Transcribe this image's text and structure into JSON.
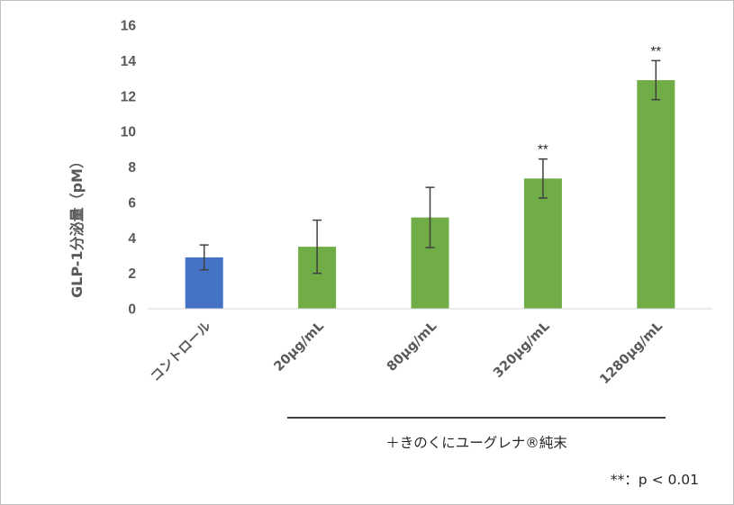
{
  "chart_data": {
    "type": "bar",
    "ylabel": "GLP-1分泌量（pM）",
    "ylim": [
      0,
      16
    ],
    "yticks": [
      0,
      2,
      4,
      6,
      8,
      10,
      12,
      14,
      16
    ],
    "grid": false,
    "categories": [
      "コントロール",
      "20μg/mL",
      "80μg/mL",
      "320μg/mL",
      "1280μg/mL"
    ],
    "values": [
      2.9,
      3.5,
      5.15,
      7.35,
      12.9
    ],
    "error": [
      0.7,
      1.5,
      1.7,
      1.1,
      1.1
    ],
    "significance": [
      "",
      "",
      "",
      "**",
      "**"
    ],
    "bar_colors": [
      "#4472C4",
      "#70AD47",
      "#70AD47",
      "#70AD47",
      "#70AD47"
    ],
    "group_label": "＋きのくにユーグレナ®純末",
    "footnote": "**：p < 0.01"
  }
}
